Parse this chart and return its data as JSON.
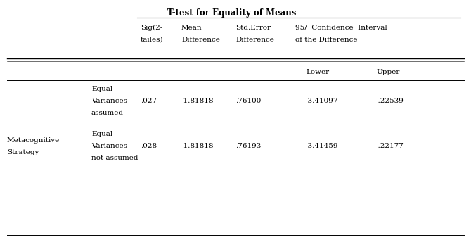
{
  "title": "T-test for Equality of Means",
  "hdr1": [
    "Sig(2-",
    "Mean",
    "Std.Error",
    "95/  Confidence  Interval"
  ],
  "hdr2": [
    "tailes)",
    "Difference",
    "Difference",
    "of the Difference"
  ],
  "sub_headers": [
    "Lower",
    "Upper"
  ],
  "main_label_1": "Metacognitive",
  "main_label_2": "Strategy",
  "row1_sub": [
    "Equal",
    "Variances",
    "assumed"
  ],
  "row2_sub": [
    "Equal",
    "Variances",
    "not assumed"
  ],
  "row1_data": [
    ".027",
    "-1.81818",
    ".76100",
    "-3.41097",
    "-.22539"
  ],
  "row2_data": [
    ".028",
    "-1.81818",
    ".76193",
    "-3.41459",
    "-.22177"
  ],
  "bg_color": "#ffffff",
  "text_color": "#000000",
  "fs": 7.5,
  "fs_title": 8.5
}
